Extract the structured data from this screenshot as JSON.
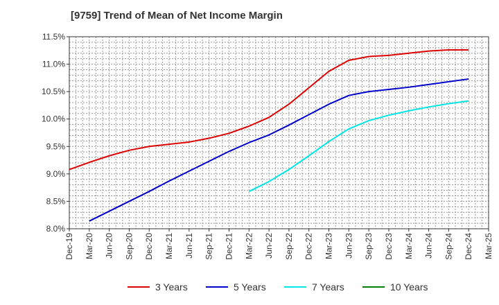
{
  "chart_data": {
    "type": "line",
    "title": "[9759]  Trend of Mean of Net Income Margin",
    "xlabel": "",
    "ylabel": "",
    "categories": [
      "Dec-19",
      "Mar-20",
      "Jun-20",
      "Sep-20",
      "Dec-20",
      "Mar-21",
      "Jun-21",
      "Sep-21",
      "Dec-21",
      "Mar-22",
      "Jun-22",
      "Sep-22",
      "Dec-22",
      "Mar-23",
      "Jun-23",
      "Sep-23",
      "Dec-23",
      "Mar-24",
      "Jun-24",
      "Sep-24",
      "Dec-24",
      "Mar-25"
    ],
    "y_ticks": [
      "8.0%",
      "8.5%",
      "9.0%",
      "9.5%",
      "10.0%",
      "10.5%",
      "11.0%",
      "11.5%"
    ],
    "ylim": [
      8.0,
      11.5
    ],
    "grid": true,
    "legend_position": "bottom",
    "series": [
      {
        "name": "3 Years",
        "color": "#dd0000",
        "values": [
          9.08,
          9.21,
          9.33,
          9.43,
          9.5,
          9.54,
          9.58,
          9.65,
          9.74,
          9.87,
          10.03,
          10.27,
          10.57,
          10.87,
          11.07,
          11.14,
          11.16,
          11.2,
          11.24,
          11.26,
          11.26,
          null
        ]
      },
      {
        "name": "5 Years",
        "color": "#0000cc",
        "values": [
          null,
          8.14,
          8.32,
          8.5,
          8.68,
          8.87,
          9.05,
          9.23,
          9.41,
          9.57,
          9.71,
          9.89,
          10.08,
          10.27,
          10.43,
          10.5,
          10.54,
          10.58,
          10.63,
          10.68,
          10.73,
          null
        ]
      },
      {
        "name": "7 Years",
        "color": "#00e5e5",
        "values": [
          null,
          null,
          null,
          null,
          null,
          null,
          null,
          null,
          null,
          8.68,
          8.86,
          9.08,
          9.33,
          9.59,
          9.82,
          9.97,
          10.07,
          10.15,
          10.22,
          10.28,
          10.33,
          null
        ]
      },
      {
        "name": "10 Years",
        "color": "#008000",
        "values": [
          null,
          null,
          null,
          null,
          null,
          null,
          null,
          null,
          null,
          null,
          null,
          null,
          null,
          null,
          null,
          null,
          null,
          null,
          null,
          null,
          null,
          null
        ]
      }
    ]
  }
}
